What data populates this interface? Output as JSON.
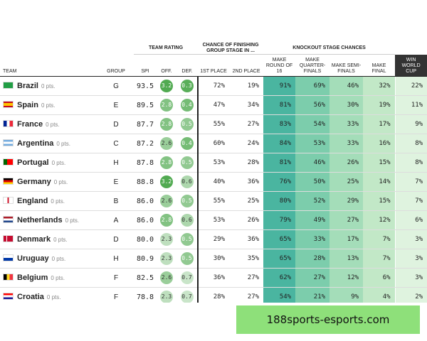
{
  "table": {
    "group_headers": [
      "TEAM RATING",
      "CHANCE OF FINISHING GROUP STAGE IN ...",
      "KNOCKOUT STAGE CHANCES"
    ],
    "columns": [
      "TEAM",
      "GROUP",
      "SPI",
      "OFF.",
      "DEF.",
      "1ST PLACE",
      "2ND PLACE",
      "MAKE ROUND OF 16",
      "MAKE QUARTER-FINALS",
      "MAKE SEMI-FINALS",
      "MAKE FINAL",
      "WIN WORLD CUP"
    ],
    "rows": [
      {
        "team": "Brazil",
        "pts": "0 pts.",
        "cells": [
          "G",
          "93.5",
          "3.2",
          "0.3",
          "72%",
          "19%",
          "91%",
          "69%",
          "46%",
          "32%",
          "22%"
        ]
      },
      {
        "team": "Spain",
        "pts": "0 pts.",
        "cells": [
          "E",
          "89.5",
          "2.8",
          "0.4",
          "47%",
          "34%",
          "81%",
          "56%",
          "30%",
          "19%",
          "11%"
        ]
      },
      {
        "team": "France",
        "pts": "0 pts.",
        "cells": [
          "D",
          "87.7",
          "2.8",
          "0.5",
          "55%",
          "27%",
          "83%",
          "54%",
          "33%",
          "17%",
          "9%"
        ]
      },
      {
        "team": "Argentina",
        "pts": "0 pts.",
        "cells": [
          "C",
          "87.2",
          "2.6",
          "0.4",
          "60%",
          "24%",
          "84%",
          "53%",
          "33%",
          "16%",
          "8%"
        ]
      },
      {
        "team": "Portugal",
        "pts": "0 pts.",
        "cells": [
          "H",
          "87.8",
          "2.8",
          "0.5",
          "53%",
          "28%",
          "81%",
          "46%",
          "26%",
          "15%",
          "8%"
        ]
      },
      {
        "team": "Germany",
        "pts": "0 pts.",
        "cells": [
          "E",
          "88.8",
          "3.2",
          "0.6",
          "40%",
          "36%",
          "76%",
          "50%",
          "25%",
          "14%",
          "7%"
        ]
      },
      {
        "team": "England",
        "pts": "0 pts.",
        "cells": [
          "B",
          "86.0",
          "2.6",
          "0.5",
          "55%",
          "25%",
          "80%",
          "52%",
          "29%",
          "15%",
          "7%"
        ]
      },
      {
        "team": "Netherlands",
        "pts": "0 pts.",
        "cells": [
          "A",
          "86.0",
          "2.8",
          "0.6",
          "53%",
          "26%",
          "79%",
          "49%",
          "27%",
          "12%",
          "6%"
        ]
      },
      {
        "team": "Denmark",
        "pts": "0 pts.",
        "cells": [
          "D",
          "80.0",
          "2.3",
          "0.5",
          "29%",
          "36%",
          "65%",
          "33%",
          "17%",
          "7%",
          "3%"
        ]
      },
      {
        "team": "Uruguay",
        "pts": "0 pts.",
        "cells": [
          "H",
          "80.9",
          "2.3",
          "0.5",
          "30%",
          "35%",
          "65%",
          "28%",
          "13%",
          "7%",
          "3%"
        ]
      },
      {
        "team": "Belgium",
        "pts": "0 pts.",
        "cells": [
          "F",
          "82.5",
          "2.6",
          "0.7",
          "36%",
          "27%",
          "62%",
          "27%",
          "12%",
          "6%",
          "3%"
        ]
      },
      {
        "team": "Croatia",
        "pts": "0 pts.",
        "cells": [
          "F",
          "78.8",
          "2.3",
          "0.7",
          "28%",
          "27%",
          "54%",
          "21%",
          "9%",
          "4%",
          "2%"
        ]
      }
    ]
  },
  "watermark": "188sports-esports.com"
}
